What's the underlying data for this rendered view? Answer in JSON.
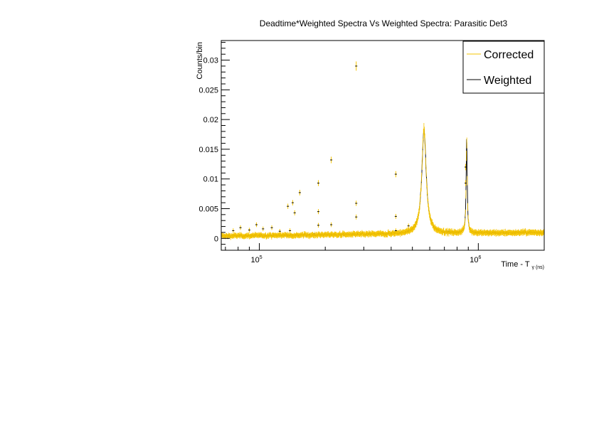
{
  "chart_data": {
    "type": "scatter",
    "title": "Deadtime*Weighted Spectra Vs Weighted Spectra: Parasitic Det3",
    "xlabel": "Time - T",
    "xlabel_subscript": "γ (ns)",
    "ylabel": "Counts/bin",
    "xscale": "log",
    "xlim": [
      67000,
      2000000
    ],
    "ylim": [
      -0.002,
      0.0333
    ],
    "x_ticks": [
      {
        "value": 100000,
        "base": "10",
        "exp": "5"
      },
      {
        "value": 1000000,
        "base": "10",
        "exp": "6"
      }
    ],
    "y_ticks": [
      {
        "value": 0,
        "label": "0"
      },
      {
        "value": 0.005,
        "label": "0.005"
      },
      {
        "value": 0.01,
        "label": "0.01"
      },
      {
        "value": 0.015,
        "label": "0.015"
      },
      {
        "value": 0.02,
        "label": "0.02"
      },
      {
        "value": 0.025,
        "label": "0.025"
      },
      {
        "value": 0.03,
        "label": "0.03"
      }
    ],
    "baseline": {
      "start_value": 0.0004,
      "end_value": 0.001
    },
    "peaks": [
      {
        "center": 565000,
        "height": 0.0175,
        "width_decades": 0.012
      },
      {
        "center": 885000,
        "height": 0.016,
        "width_decades": 0.003
      }
    ],
    "outlier_points": [
      {
        "x": 76000,
        "y": 0.0013
      },
      {
        "x": 82000,
        "y": 0.0018
      },
      {
        "x": 90000,
        "y": 0.0014
      },
      {
        "x": 97000,
        "y": 0.0023
      },
      {
        "x": 104000,
        "y": 0.0016
      },
      {
        "x": 114000,
        "y": 0.0018
      },
      {
        "x": 124000,
        "y": 0.0012
      },
      {
        "x": 135000,
        "y": 0.0054
      },
      {
        "x": 142000,
        "y": 0.006
      },
      {
        "x": 145000,
        "y": 0.0043
      },
      {
        "x": 153000,
        "y": 0.0077
      },
      {
        "x": 138000,
        "y": 0.0013
      },
      {
        "x": 186000,
        "y": 0.0093
      },
      {
        "x": 186000,
        "y": 0.0045
      },
      {
        "x": 186000,
        "y": 0.0022
      },
      {
        "x": 213000,
        "y": 0.0132
      },
      {
        "x": 213000,
        "y": 0.0023
      },
      {
        "x": 277000,
        "y": 0.029
      },
      {
        "x": 277000,
        "y": 0.0059
      },
      {
        "x": 277000,
        "y": 0.0036
      },
      {
        "x": 420000,
        "y": 0.0108
      },
      {
        "x": 420000,
        "y": 0.0037
      },
      {
        "x": 420000,
        "y": 0.0013
      },
      {
        "x": 480000,
        "y": 0.0021
      },
      {
        "x": 875000,
        "y": 0.012
      },
      {
        "x": 875000,
        "y": 0.0093
      }
    ],
    "series": [
      {
        "name": "Corrected",
        "color": "#f5c400"
      },
      {
        "name": "Weighted",
        "color": "#000000"
      }
    ],
    "legend_position": "top-right",
    "grid": false
  }
}
